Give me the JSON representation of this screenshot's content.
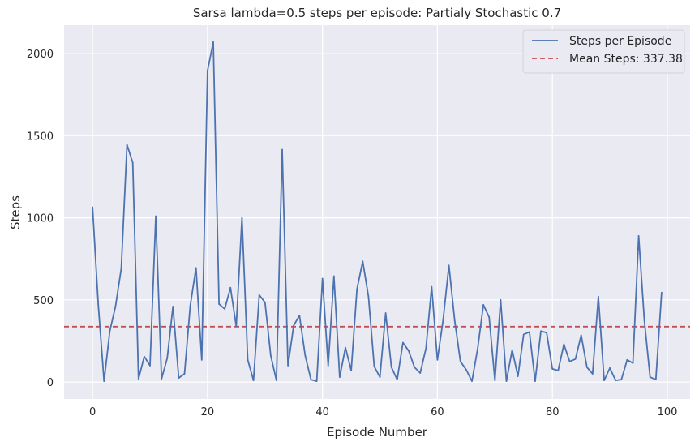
{
  "chart_data": {
    "type": "line",
    "title": "Sarsa lambda=0.5 steps per episode: Partialy Stochastic 0.7",
    "xlabel": "Episode Number",
    "ylabel": "Steps",
    "xlim": [
      -4.95,
      103.95
    ],
    "ylim": [
      -103,
      2173
    ],
    "xticks": [
      0,
      20,
      40,
      60,
      80,
      100
    ],
    "yticks": [
      0,
      500,
      1000,
      1500,
      2000
    ],
    "grid": true,
    "legend_position": "top-right",
    "series": [
      {
        "name": "Steps per Episode",
        "color": "#4c72b0",
        "style": "solid",
        "x": [
          0,
          1,
          2,
          3,
          4,
          5,
          6,
          7,
          8,
          9,
          10,
          11,
          12,
          13,
          14,
          15,
          16,
          17,
          18,
          19,
          20,
          21,
          22,
          23,
          24,
          25,
          26,
          27,
          28,
          29,
          30,
          31,
          32,
          33,
          34,
          35,
          36,
          37,
          38,
          39,
          40,
          41,
          42,
          43,
          44,
          45,
          46,
          47,
          48,
          49,
          50,
          51,
          52,
          53,
          54,
          55,
          56,
          57,
          58,
          59,
          60,
          61,
          62,
          63,
          64,
          65,
          66,
          67,
          68,
          69,
          70,
          71,
          72,
          73,
          74,
          75,
          76,
          77,
          78,
          79,
          80,
          81,
          82,
          83,
          84,
          85,
          86,
          87,
          88,
          89,
          90,
          91,
          92,
          93,
          94,
          95,
          96,
          97,
          98,
          99
        ],
        "values": [
          1065,
          470,
          5,
          310,
          460,
          690,
          1445,
          1335,
          20,
          155,
          100,
          1010,
          20,
          145,
          460,
          25,
          50,
          465,
          695,
          135,
          1895,
          2070,
          475,
          445,
          575,
          340,
          1000,
          135,
          10,
          530,
          485,
          160,
          10,
          1415,
          100,
          345,
          405,
          160,
          15,
          5,
          630,
          100,
          645,
          30,
          210,
          70,
          565,
          735,
          520,
          95,
          30,
          420,
          90,
          15,
          240,
          190,
          90,
          55,
          205,
          580,
          135,
          380,
          710,
          375,
          125,
          75,
          5,
          205,
          470,
          395,
          10,
          500,
          5,
          195,
          35,
          290,
          305,
          5,
          310,
          300,
          80,
          70,
          230,
          125,
          140,
          285,
          90,
          50,
          520,
          10,
          85,
          10,
          15,
          135,
          115,
          890,
          375,
          30,
          15,
          545
        ]
      },
      {
        "name": "Mean Steps: 337.38",
        "color": "#c44e52",
        "style": "dashed",
        "value": 337.38
      }
    ]
  }
}
